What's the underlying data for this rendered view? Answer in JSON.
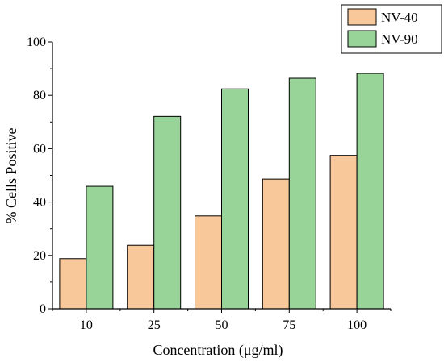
{
  "chart_data": {
    "type": "bar",
    "categories": [
      "10",
      "25",
      "50",
      "75",
      "100"
    ],
    "series": [
      {
        "name": "NV-40",
        "values": [
          18.8,
          23.8,
          34.8,
          48.6,
          57.5
        ],
        "color": "#f9c89a"
      },
      {
        "name": "NV-90",
        "values": [
          45.9,
          72.1,
          82.4,
          86.4,
          88.2
        ],
        "color": "#98d498"
      }
    ],
    "xlabel": "Concentration (μg/ml)",
    "ylabel": "% Cells Positive",
    "ylim": [
      0,
      100
    ],
    "yticks": [
      "0",
      "20",
      "40",
      "60",
      "80",
      "100"
    ],
    "grid": false,
    "legend_position": "top-right"
  }
}
